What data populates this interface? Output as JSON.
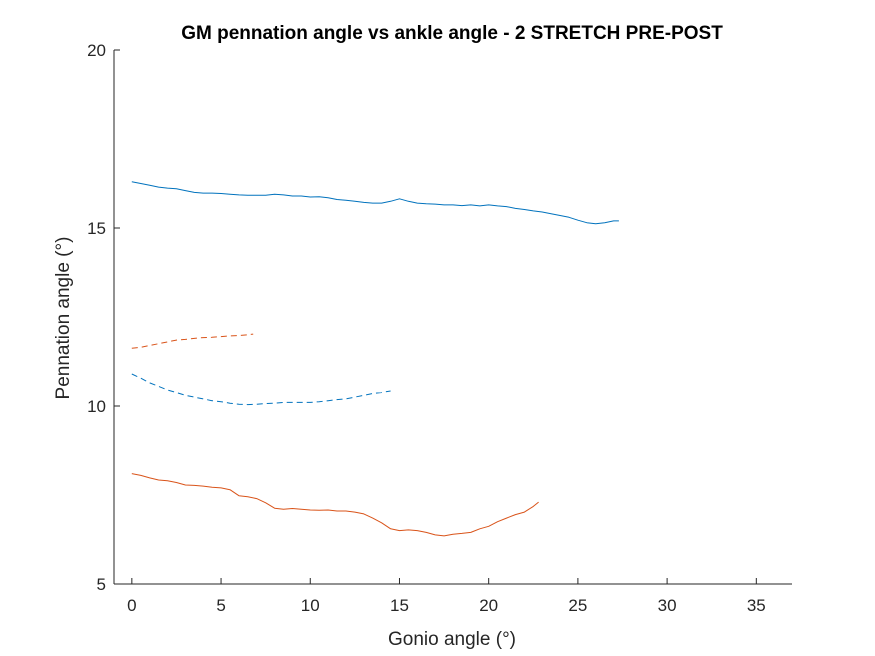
{
  "chart_data": {
    "type": "line",
    "title": "GM pennation angle vs ankle angle - 2 STRETCH PRE-POST",
    "xlabel": "Gonio angle (°)",
    "ylabel": "Pennation angle (°)",
    "xlim": [
      -1,
      37
    ],
    "ylim": [
      5,
      20
    ],
    "xticks": [
      0,
      5,
      10,
      15,
      20,
      25,
      30,
      35
    ],
    "yticks": [
      5,
      10,
      15,
      20
    ],
    "grid": false,
    "legend": "none",
    "colors": {
      "blue": "#0072BD",
      "orange": "#D95319",
      "axis": "#262626"
    },
    "series": [
      {
        "color": "#0072BD",
        "style": "solid",
        "x": [
          0,
          0.5,
          1,
          1.5,
          2,
          2.5,
          3,
          3.5,
          4,
          4.5,
          5,
          5.5,
          6,
          6.5,
          7,
          7.5,
          8,
          8.5,
          9,
          9.5,
          10,
          10.5,
          11,
          11.5,
          12,
          12.5,
          13,
          13.5,
          14,
          14.5,
          15,
          15.5,
          16,
          16.5,
          17,
          17.5,
          18,
          18.5,
          19,
          19.5,
          20,
          20.5,
          21,
          21.5,
          22,
          22.5,
          23,
          23.5,
          24,
          24.5,
          25,
          25.5,
          26,
          26.5,
          27,
          27.3
        ],
        "y": [
          16.3,
          16.25,
          16.2,
          16.15,
          16.12,
          16.1,
          16.05,
          16.0,
          15.98,
          15.98,
          15.97,
          15.95,
          15.93,
          15.92,
          15.92,
          15.92,
          15.95,
          15.93,
          15.9,
          15.9,
          15.87,
          15.88,
          15.85,
          15.8,
          15.78,
          15.75,
          15.72,
          15.7,
          15.7,
          15.75,
          15.82,
          15.75,
          15.7,
          15.68,
          15.67,
          15.65,
          15.65,
          15.63,
          15.65,
          15.62,
          15.65,
          15.62,
          15.6,
          15.55,
          15.52,
          15.48,
          15.45,
          15.4,
          15.35,
          15.3,
          15.22,
          15.15,
          15.12,
          15.15,
          15.2,
          15.2
        ]
      },
      {
        "color": "#0072BD",
        "style": "dashed",
        "x": [
          0,
          0.5,
          1,
          1.5,
          2,
          2.5,
          3,
          3.5,
          4,
          4.5,
          5,
          5.5,
          6,
          6.5,
          7,
          7.5,
          8,
          8.5,
          9,
          9.5,
          10,
          10.5,
          11,
          11.5,
          12,
          12.5,
          13,
          13.5,
          14,
          14.5
        ],
        "y": [
          10.9,
          10.78,
          10.65,
          10.55,
          10.45,
          10.38,
          10.3,
          10.25,
          10.2,
          10.15,
          10.12,
          10.08,
          10.05,
          10.04,
          10.05,
          10.07,
          10.08,
          10.1,
          10.1,
          10.1,
          10.1,
          10.12,
          10.15,
          10.18,
          10.2,
          10.25,
          10.3,
          10.35,
          10.38,
          10.42
        ]
      },
      {
        "color": "#D95319",
        "style": "dashed",
        "x": [
          0,
          0.5,
          1,
          1.5,
          2,
          2.5,
          3,
          3.5,
          4,
          4.5,
          5,
          5.5,
          6,
          6.5,
          6.8
        ],
        "y": [
          11.62,
          11.65,
          11.7,
          11.75,
          11.8,
          11.85,
          11.87,
          11.9,
          11.92,
          11.93,
          11.95,
          11.97,
          11.98,
          12.0,
          12.02
        ]
      },
      {
        "color": "#D95319",
        "style": "solid",
        "x": [
          0,
          0.5,
          1,
          1.5,
          2,
          2.5,
          3,
          3.5,
          4,
          4.5,
          5,
          5.5,
          6,
          6.5,
          7,
          7.5,
          8,
          8.5,
          9,
          9.5,
          10,
          10.5,
          11,
          11.5,
          12,
          12.5,
          13,
          13.5,
          14,
          14.5,
          15,
          15.5,
          16,
          16.5,
          17,
          17.5,
          18,
          18.5,
          19,
          19.5,
          20,
          20.5,
          21,
          21.5,
          22,
          22.5,
          22.8
        ],
        "y": [
          8.1,
          8.05,
          7.98,
          7.92,
          7.9,
          7.85,
          7.78,
          7.77,
          7.75,
          7.72,
          7.7,
          7.65,
          7.48,
          7.45,
          7.4,
          7.28,
          7.13,
          7.1,
          7.12,
          7.1,
          7.08,
          7.07,
          7.08,
          7.05,
          7.05,
          7.02,
          6.97,
          6.85,
          6.72,
          6.55,
          6.5,
          6.52,
          6.5,
          6.45,
          6.38,
          6.35,
          6.4,
          6.42,
          6.45,
          6.55,
          6.62,
          6.75,
          6.85,
          6.95,
          7.02,
          7.18,
          7.3
        ]
      }
    ]
  }
}
